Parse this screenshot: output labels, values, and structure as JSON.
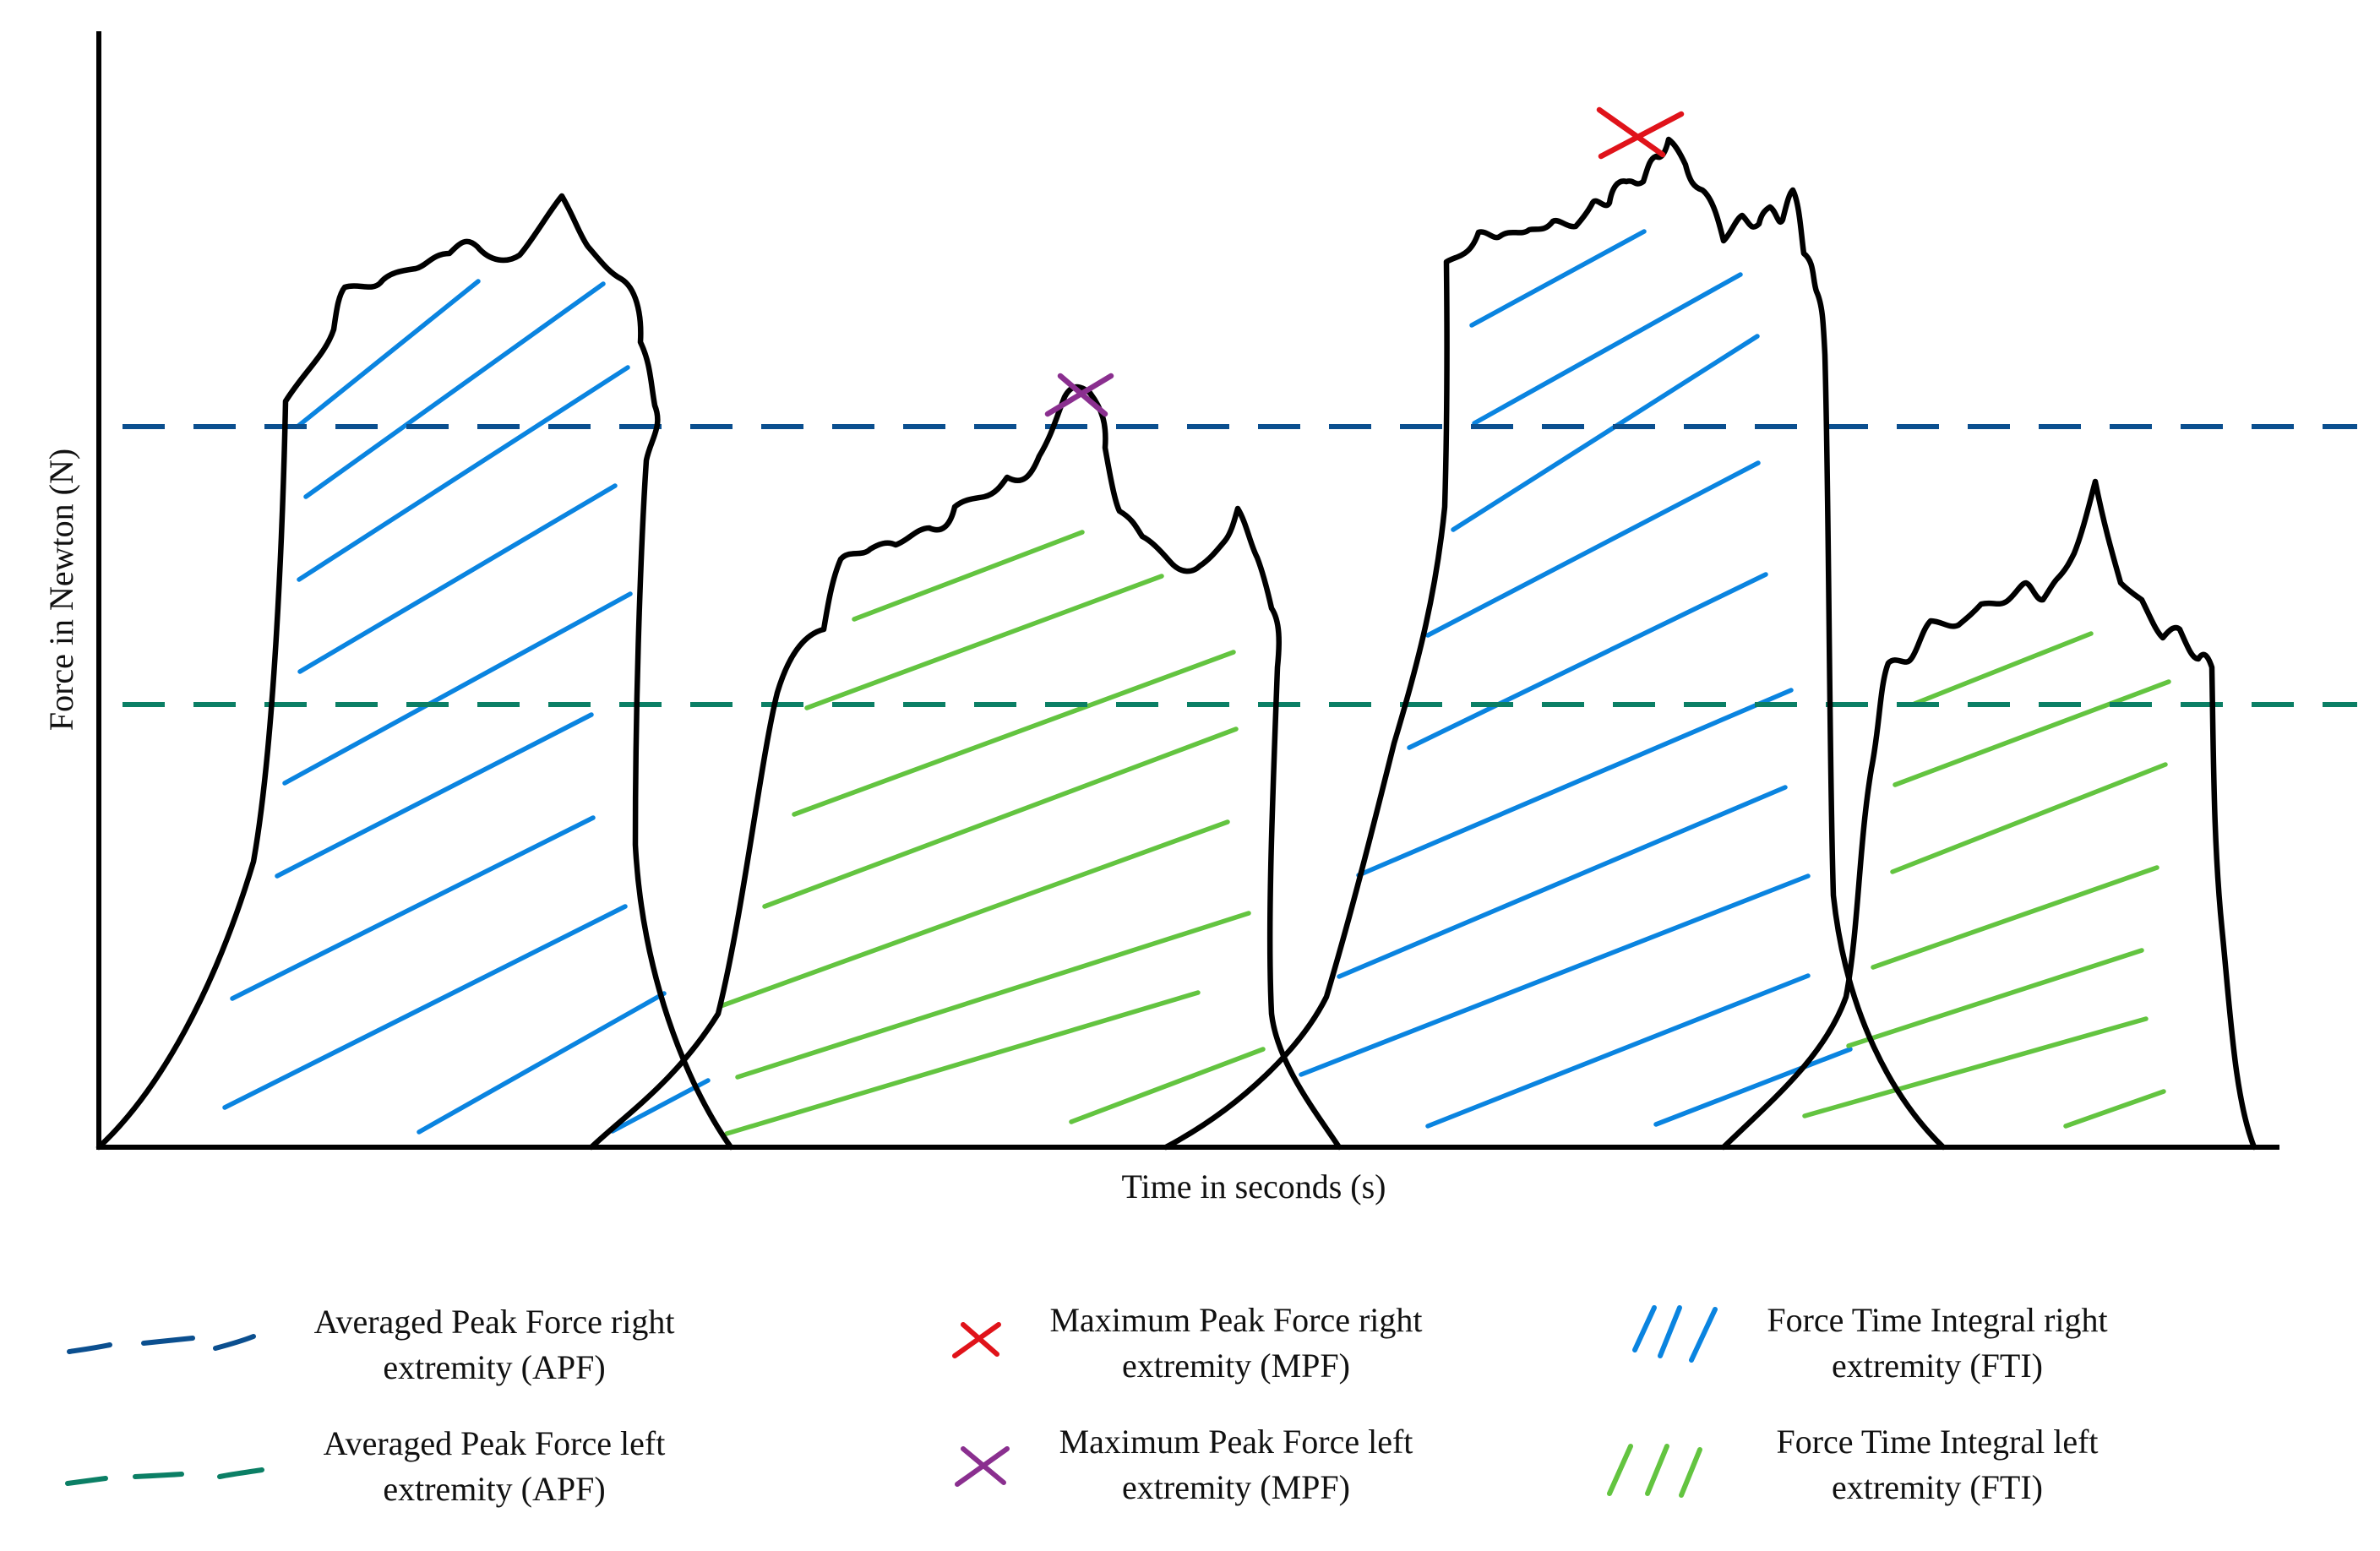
{
  "axes": {
    "x_label": "Time in seconds (s)",
    "y_label": "Force in Newton (N)"
  },
  "legend": {
    "apf_right": {
      "line1": "Averaged Peak Force right",
      "line2": "extremity (APF)"
    },
    "apf_left": {
      "line1": "Averaged Peak Force left",
      "line2": "extremity (APF)"
    },
    "mpf_right": {
      "line1": "Maximum Peak Force right",
      "line2": "extremity (MPF)"
    },
    "mpf_left": {
      "line1": "Maximum Peak Force left",
      "line2": "extremity (MPF)"
    },
    "fti_right": {
      "line1": "Force Time Integral right",
      "line2": "extremity (FTI)"
    },
    "fti_left": {
      "line1": "Force Time Integral left",
      "line2": "extremity (FTI)"
    }
  },
  "colors": {
    "apf_right": "#0b4f8f",
    "apf_left": "#0b7f65",
    "mpf_right": "#e0131a",
    "mpf_left": "#8a2f8f",
    "fti_right": "#0a84e0",
    "fti_left": "#63c440",
    "outline": "#000000"
  }
}
